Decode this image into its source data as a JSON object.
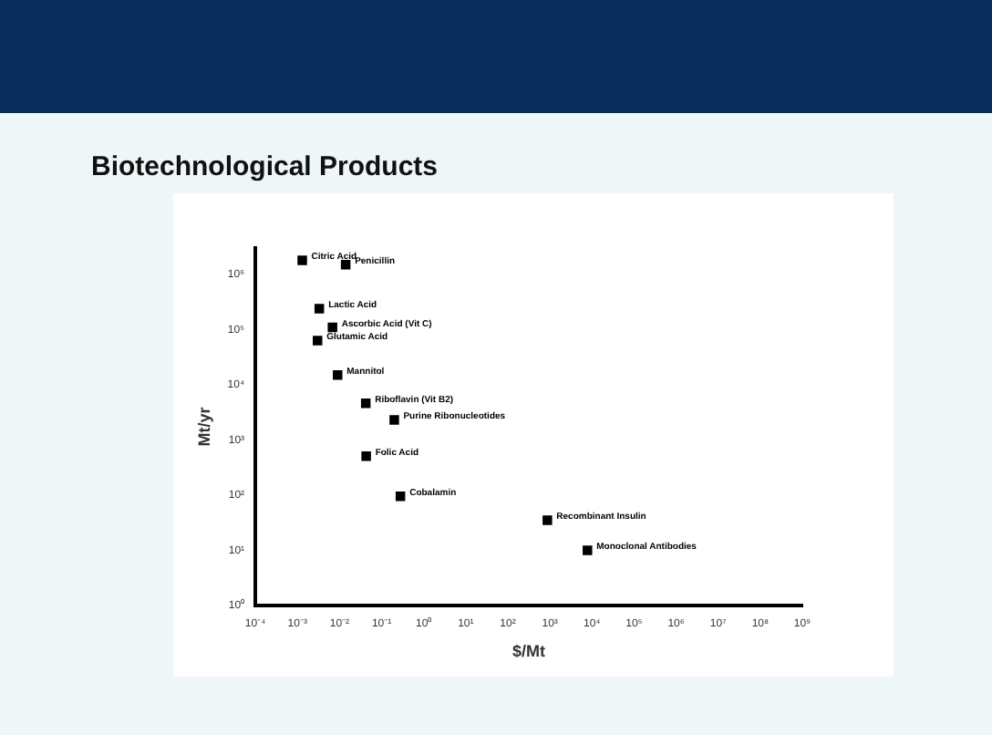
{
  "chart_data": {
    "type": "scatter",
    "title": "Biotechnological Products",
    "xlabel": "$/Mt",
    "ylabel": "Mt/yr",
    "log": "xy",
    "grid": false,
    "legend": false,
    "marker": "square",
    "x": [
      0.0013,
      0.014,
      0.0033,
      0.0068,
      0.003,
      0.009,
      0.042,
      0.2,
      0.043,
      0.28,
      870,
      7800
    ],
    "series": [
      {
        "color": "#000000",
        "values": [
          1800000,
          1500000,
          240000,
          110000,
          63000,
          15000,
          4600,
          2300,
          510,
          95,
          35,
          10
        ]
      }
    ],
    "xlim": [
      0.0001,
      1000000000
    ],
    "xticks": [
      {
        "value": 0.0001,
        "label": "10⁻⁴"
      },
      {
        "value": 0.001,
        "label": "10⁻³"
      },
      {
        "value": 0.01,
        "label": "10⁻²"
      },
      {
        "value": 0.1,
        "label": "10⁻¹"
      },
      {
        "value": 1,
        "label": "10⁰"
      },
      {
        "value": 10,
        "label": "10¹"
      },
      {
        "value": 100,
        "label": "10²"
      },
      {
        "value": 1000,
        "label": "10³"
      },
      {
        "value": 10000,
        "label": "10⁴"
      },
      {
        "value": 100000,
        "label": "10⁵"
      },
      {
        "value": 1000000,
        "label": "10⁶"
      },
      {
        "value": 10000000,
        "label": "10⁷"
      },
      {
        "value": 100000000,
        "label": "10⁸"
      },
      {
        "value": 1000000000,
        "label": "10⁹"
      }
    ],
    "ylim": [
      1,
      3000000
    ],
    "yticks": [
      {
        "value": 1,
        "label": "10⁰"
      },
      {
        "value": 10,
        "label": "10¹"
      },
      {
        "value": 100,
        "label": "10²"
      },
      {
        "value": 1000,
        "label": "10³"
      },
      {
        "value": 10000,
        "label": "10⁴"
      },
      {
        "value": 100000,
        "label": "10⁵"
      },
      {
        "value": 1000000,
        "label": "10⁶"
      }
    ],
    "annotations": [
      {
        "text": "Citric Acid",
        "x": 0.0013,
        "y": 1800000
      },
      {
        "text": "Penicillin",
        "x": 0.014,
        "y": 1500000
      },
      {
        "text": "Lactic Acid",
        "x": 0.0033,
        "y": 240000
      },
      {
        "text": "Ascorbic Acid (Vit C)",
        "x": 0.0068,
        "y": 110000
      },
      {
        "text": "Glutamic Acid",
        "x": 0.003,
        "y": 63000
      },
      {
        "text": "Mannitol",
        "x": 0.009,
        "y": 15000
      },
      {
        "text": "Riboflavin (Vit B2)",
        "x": 0.042,
        "y": 4600
      },
      {
        "text": "Purine Ribonucleotides",
        "x": 0.2,
        "y": 2300
      },
      {
        "text": "Folic Acid",
        "x": 0.043,
        "y": 510
      },
      {
        "text": "Cobalamin",
        "x": 0.28,
        "y": 95
      },
      {
        "text": "Recombinant Insulin",
        "x": 870,
        "y": 35
      },
      {
        "text": "Monoclonal Antibodies",
        "x": 7800,
        "y": 10
      }
    ]
  }
}
